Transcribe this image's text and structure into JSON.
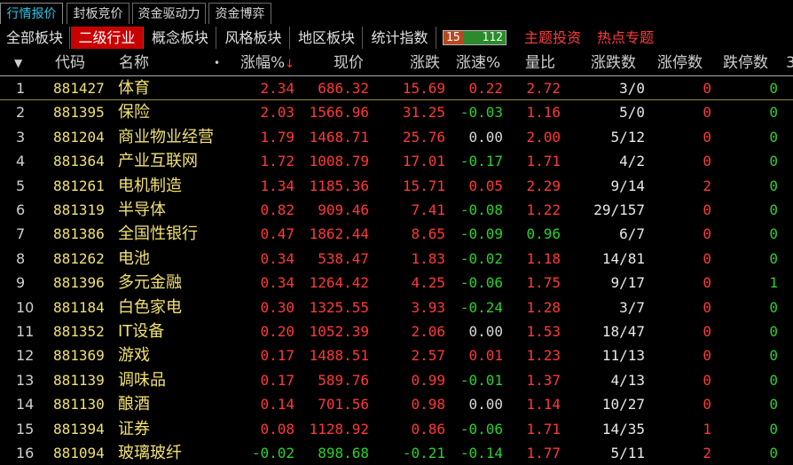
{
  "top_tabs": [
    {
      "label": "行情报价",
      "active": true
    },
    {
      "label": "封板竞价",
      "active": false
    },
    {
      "label": "资金驱动力",
      "active": false
    },
    {
      "label": "资金博弈",
      "active": false
    }
  ],
  "sub_tabs": [
    {
      "label": "全部板块",
      "active": false
    },
    {
      "label": "二级行业",
      "active": true
    },
    {
      "label": "概念板块",
      "active": false
    },
    {
      "label": "风格板块",
      "active": false
    },
    {
      "label": "地区板块",
      "active": false
    },
    {
      "label": "统计指数",
      "active": false
    }
  ],
  "counter": {
    "left": "15",
    "right": "112"
  },
  "hot_links": [
    "主题投资",
    "热点专题"
  ],
  "columns": {
    "sort_arrow": "▼",
    "code": "代码",
    "name": "名称",
    "dot": "•",
    "pct": "涨幅%",
    "pct_sort": "↓",
    "price": "现价",
    "change": "涨跌",
    "speed": "涨速%",
    "vol_ratio": "量比",
    "up_down": "涨跌数",
    "limit_up": "涨停数",
    "limit_down": "跌停数",
    "extra": "3"
  },
  "rows": [
    {
      "idx": "1",
      "code": "881427",
      "name": "体育",
      "pct": "2.34",
      "price": "686.32",
      "change": "15.69",
      "speed": "0.22",
      "vr": "2.72",
      "ud": "3/0",
      "lu": "0",
      "ld": "0"
    },
    {
      "idx": "2",
      "code": "881395",
      "name": "保险",
      "pct": "2.03",
      "price": "1566.96",
      "change": "31.25",
      "speed": "-0.03",
      "vr": "1.16",
      "ud": "5/0",
      "lu": "0",
      "ld": "0"
    },
    {
      "idx": "3",
      "code": "881204",
      "name": "商业物业经营",
      "pct": "1.79",
      "price": "1468.71",
      "change": "25.76",
      "speed": "0.00",
      "vr": "2.00",
      "ud": "5/12",
      "lu": "0",
      "ld": "0"
    },
    {
      "idx": "4",
      "code": "881364",
      "name": "产业互联网",
      "pct": "1.72",
      "price": "1008.79",
      "change": "17.01",
      "speed": "-0.17",
      "vr": "1.71",
      "ud": "4/2",
      "lu": "0",
      "ld": "0"
    },
    {
      "idx": "5",
      "code": "881261",
      "name": "电机制造",
      "pct": "1.34",
      "price": "1185.36",
      "change": "15.71",
      "speed": "0.05",
      "vr": "2.29",
      "ud": "9/14",
      "lu": "2",
      "ld": "0"
    },
    {
      "idx": "6",
      "code": "881319",
      "name": "半导体",
      "pct": "0.82",
      "price": "909.46",
      "change": "7.41",
      "speed": "-0.08",
      "vr": "1.22",
      "ud": "29/157",
      "lu": "0",
      "ld": "0"
    },
    {
      "idx": "7",
      "code": "881386",
      "name": "全国性银行",
      "pct": "0.47",
      "price": "1862.44",
      "change": "8.65",
      "speed": "-0.09",
      "vr": "0.96",
      "ud": "6/7",
      "lu": "0",
      "ld": "0"
    },
    {
      "idx": "8",
      "code": "881262",
      "name": "电池",
      "pct": "0.34",
      "price": "538.47",
      "change": "1.83",
      "speed": "-0.02",
      "vr": "1.18",
      "ud": "14/81",
      "lu": "0",
      "ld": "0"
    },
    {
      "idx": "9",
      "code": "881396",
      "name": "多元金融",
      "pct": "0.34",
      "price": "1264.42",
      "change": "4.25",
      "speed": "-0.06",
      "vr": "1.75",
      "ud": "9/17",
      "lu": "0",
      "ld": "1"
    },
    {
      "idx": "10",
      "code": "881184",
      "name": "白色家电",
      "pct": "0.30",
      "price": "1325.55",
      "change": "3.93",
      "speed": "-0.24",
      "vr": "1.28",
      "ud": "3/7",
      "lu": "0",
      "ld": "0"
    },
    {
      "idx": "11",
      "code": "881352",
      "name": "IT设备",
      "pct": "0.20",
      "price": "1052.39",
      "change": "2.06",
      "speed": "0.00",
      "vr": "1.53",
      "ud": "18/47",
      "lu": "0",
      "ld": "0"
    },
    {
      "idx": "12",
      "code": "881369",
      "name": "游戏",
      "pct": "0.17",
      "price": "1488.51",
      "change": "2.57",
      "speed": "0.01",
      "vr": "1.23",
      "ud": "11/13",
      "lu": "0",
      "ld": "0"
    },
    {
      "idx": "13",
      "code": "881139",
      "name": "调味品",
      "pct": "0.17",
      "price": "589.76",
      "change": "0.99",
      "speed": "-0.01",
      "vr": "1.37",
      "ud": "4/13",
      "lu": "0",
      "ld": "0"
    },
    {
      "idx": "14",
      "code": "881130",
      "name": "酿酒",
      "pct": "0.14",
      "price": "701.56",
      "change": "0.98",
      "speed": "0.00",
      "vr": "1.14",
      "ud": "10/27",
      "lu": "0",
      "ld": "0"
    },
    {
      "idx": "15",
      "code": "881394",
      "name": "证券",
      "pct": "0.08",
      "price": "1128.92",
      "change": "0.86",
      "speed": "-0.06",
      "vr": "1.71",
      "ud": "14/35",
      "lu": "1",
      "ld": "0"
    },
    {
      "idx": "16",
      "code": "881094",
      "name": "玻璃玻纤",
      "pct": "-0.02",
      "price": "898.68",
      "change": "-0.21",
      "speed": "-0.14",
      "vr": "1.77",
      "ud": "5/11",
      "lu": "2",
      "ld": "0"
    }
  ],
  "colors": {
    "up": "#ff3838",
    "down": "#2ad12a",
    "flat": "#d8d8d8",
    "name": "#f0e070",
    "accent": "#c80000",
    "tab_active": "#29c7e8"
  }
}
